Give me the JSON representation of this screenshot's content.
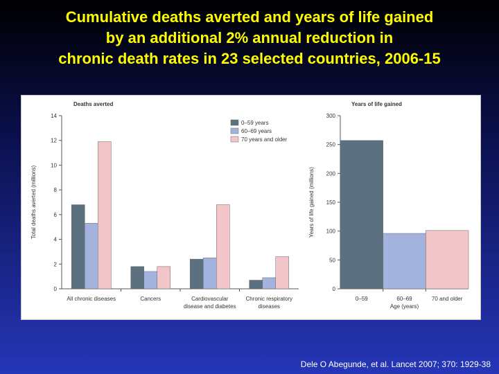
{
  "slide": {
    "title_lines": [
      "Cumulative deaths averted and years of life gained",
      "by an additional 2% annual reduction in",
      "chronic death rates in 23 selected countries, 2006-15"
    ],
    "citation": "Dele O Abegunde, et al. Lancet 2007; 370: 1929-38"
  },
  "colors": {
    "series_0_59": "#5c717f",
    "series_60_69": "#a3b3dd",
    "series_70_plus": "#f2c5c9",
    "axis": "#555555"
  },
  "chart_data": [
    {
      "type": "bar",
      "title": "Deaths averted",
      "xlabel": "",
      "ylabel": "Total deaths averted (millions)",
      "ylim": [
        0,
        14
      ],
      "yticks": [
        0,
        2,
        4,
        6,
        8,
        10,
        12,
        14
      ],
      "grid": false,
      "legend_position": "top-right",
      "categories": [
        [
          "All chronic diseases"
        ],
        [
          "Cancers"
        ],
        [
          "Cardiovascular",
          "disease and diabetes"
        ],
        [
          "Chronic respiratory",
          "diseases"
        ]
      ],
      "series": [
        {
          "name": "0–59 years",
          "color_key": "series_0_59",
          "values": [
            6.8,
            1.8,
            2.4,
            0.7
          ]
        },
        {
          "name": "60–69 years",
          "color_key": "series_60_69",
          "values": [
            5.3,
            1.4,
            2.5,
            0.9
          ]
        },
        {
          "name": "70 years and older",
          "color_key": "series_70_plus",
          "values": [
            11.9,
            1.8,
            6.8,
            2.6
          ]
        }
      ]
    },
    {
      "type": "bar",
      "title": "Years of life gained",
      "xlabel": "Age (years)",
      "ylabel": "Years of life gained (millions)",
      "ylim": [
        0,
        300
      ],
      "yticks": [
        0,
        50,
        100,
        150,
        200,
        250,
        300
      ],
      "grid": false,
      "categories": [
        "0–59",
        "60–69",
        "70 and older"
      ],
      "values": [
        257,
        96,
        101
      ],
      "color_keys": [
        "series_0_59",
        "series_60_69",
        "series_70_plus"
      ]
    }
  ]
}
